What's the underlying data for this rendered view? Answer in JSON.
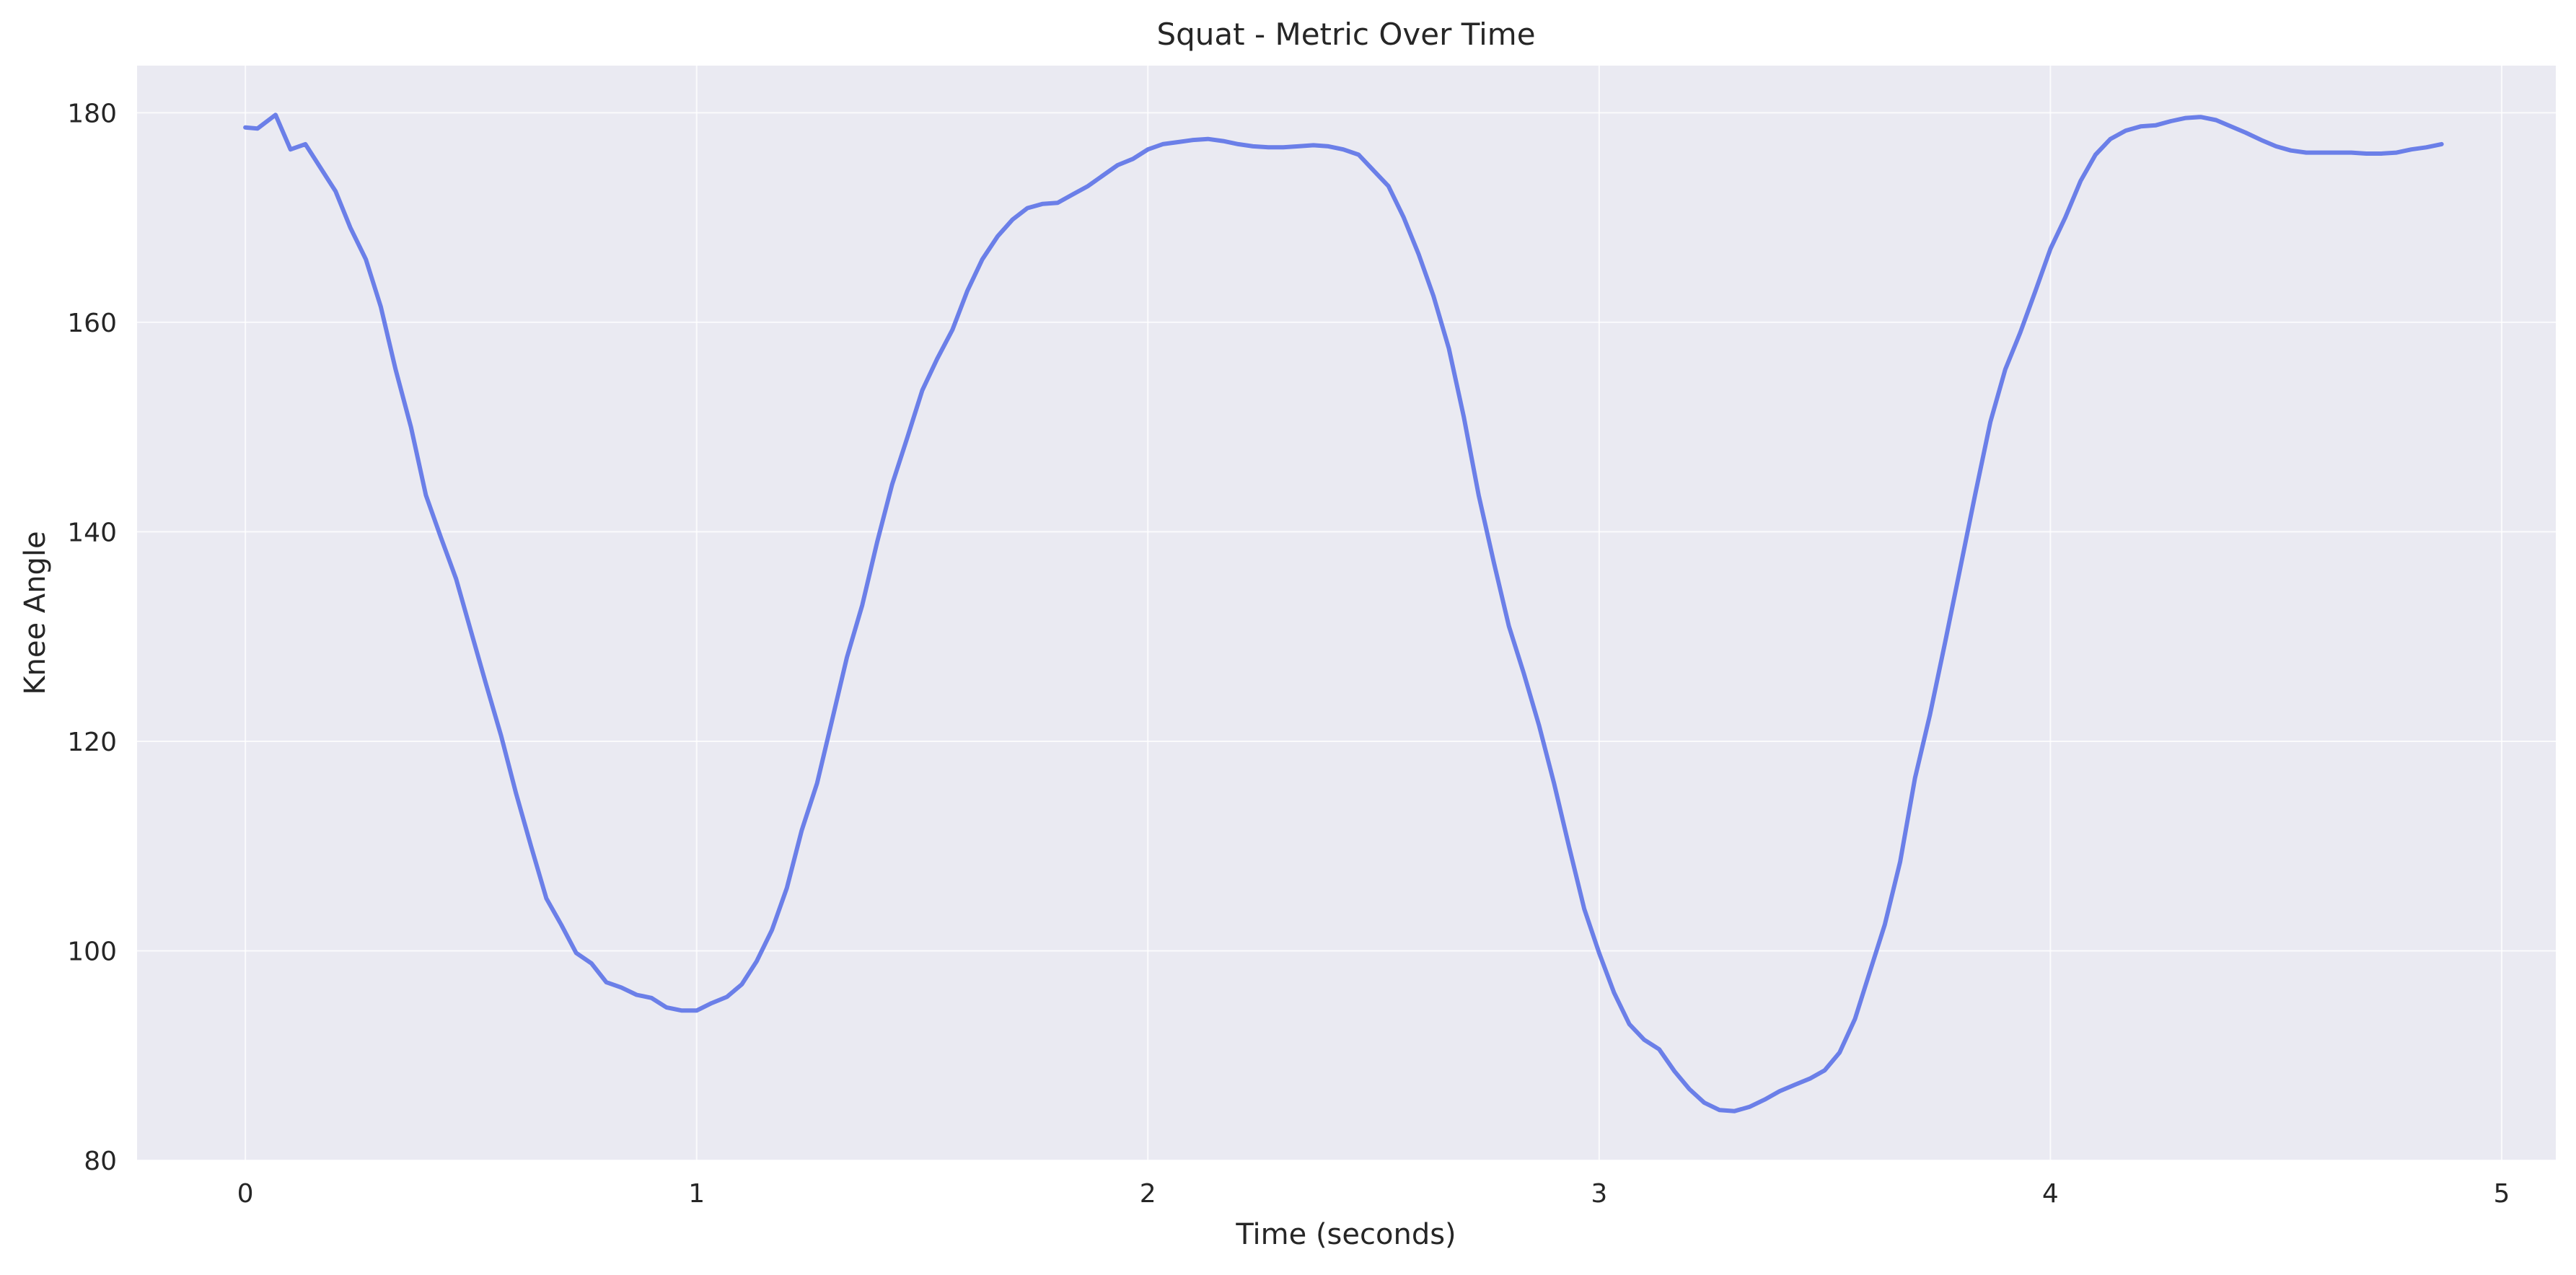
{
  "chart_data": {
    "type": "line",
    "title": "Squat - Metric Over Time",
    "xlabel": "Time (seconds)",
    "ylabel": "Knee Angle",
    "xlim": [
      -0.24,
      5.12
    ],
    "ylim": [
      80,
      184.5
    ],
    "x_ticks": [
      0,
      1,
      2,
      3,
      4,
      5
    ],
    "y_ticks": [
      80,
      100,
      120,
      140,
      160,
      180
    ],
    "grid": true,
    "background": "#eaeaf2",
    "line_color": "#6b7fe8",
    "series": [
      {
        "x": [
          0.0,
          0.027,
          0.067,
          0.1,
          0.133,
          0.2,
          0.233,
          0.267,
          0.3,
          0.333,
          0.367,
          0.4,
          0.433,
          0.467,
          0.5,
          0.533,
          0.567,
          0.6,
          0.633,
          0.667,
          0.7,
          0.733,
          0.767,
          0.8,
          0.833,
          0.867,
          0.9,
          0.933,
          0.967,
          1.0,
          1.033,
          1.067,
          1.1,
          1.133,
          1.167,
          1.2,
          1.233,
          1.267,
          1.3,
          1.333,
          1.367,
          1.4,
          1.433,
          1.467,
          1.5,
          1.533,
          1.567,
          1.6,
          1.633,
          1.667,
          1.7,
          1.733,
          1.767,
          1.8,
          1.833,
          1.867,
          1.9,
          1.933,
          1.967,
          2.0,
          2.033,
          2.067,
          2.1,
          2.133,
          2.167,
          2.2,
          2.233,
          2.267,
          2.3,
          2.333,
          2.367,
          2.4,
          2.433,
          2.467,
          2.5,
          2.533,
          2.567,
          2.6,
          2.633,
          2.667,
          2.7,
          2.733,
          2.767,
          2.8,
          2.833,
          2.867,
          2.9,
          2.933,
          2.967,
          3.0,
          3.033,
          3.067,
          3.1,
          3.133,
          3.167,
          3.2,
          3.233,
          3.267,
          3.3,
          3.333,
          3.367,
          3.4,
          3.433,
          3.467,
          3.5,
          3.533,
          3.567,
          3.6,
          3.633,
          3.667,
          3.7,
          3.733,
          3.767,
          3.8,
          3.833,
          3.867,
          3.9,
          3.933,
          3.967,
          4.0,
          4.033,
          4.067,
          4.1,
          4.133,
          4.167,
          4.2,
          4.233,
          4.267,
          4.3,
          4.333,
          4.367,
          4.4,
          4.433,
          4.467,
          4.5,
          4.533,
          4.567,
          4.6,
          4.633,
          4.667,
          4.7,
          4.733,
          4.767,
          4.8,
          4.833,
          4.867
        ],
        "values": [
          178.6,
          178.5,
          179.8,
          176.5,
          177.0,
          172.5,
          169.0,
          166.0,
          161.5,
          155.5,
          150.0,
          143.5,
          139.5,
          135.5,
          130.5,
          125.5,
          120.5,
          115.0,
          110.0,
          105.0,
          102.5,
          99.8,
          98.8,
          97.0,
          96.5,
          95.8,
          95.5,
          94.6,
          94.3,
          94.3,
          95.0,
          95.6,
          96.8,
          99.0,
          102.0,
          106.0,
          111.5,
          116.0,
          122.0,
          128.0,
          133.0,
          139.0,
          144.5,
          149.0,
          153.5,
          156.5,
          159.3,
          163.0,
          166.0,
          168.2,
          169.8,
          170.9,
          171.3,
          171.4,
          172.2,
          173.0,
          174.0,
          175.0,
          175.6,
          176.5,
          177.0,
          177.2,
          177.4,
          177.5,
          177.3,
          177.0,
          176.8,
          176.7,
          176.7,
          176.8,
          176.9,
          176.8,
          176.5,
          176.0,
          174.5,
          173.0,
          170.0,
          166.5,
          162.5,
          157.5,
          151.0,
          143.5,
          137.0,
          131.0,
          126.5,
          121.5,
          116.0,
          110.0,
          104.0,
          99.8,
          96.0,
          93.0,
          91.5,
          90.6,
          88.5,
          86.8,
          85.5,
          84.8,
          84.7,
          85.1,
          85.8,
          86.6,
          87.2,
          87.8,
          88.6,
          90.3,
          93.5,
          98.0,
          102.5,
          108.5,
          116.5,
          122.5,
          129.5,
          136.5,
          143.5,
          150.5,
          155.5,
          159.0,
          163.0,
          167.0,
          170.0,
          173.5,
          176.0,
          177.5,
          178.3,
          178.7,
          178.8,
          179.2,
          179.5,
          179.6,
          179.3,
          178.7,
          178.1,
          177.4,
          176.8,
          176.4,
          176.2,
          176.2,
          176.2,
          176.2,
          176.1,
          176.1,
          176.2,
          176.5,
          176.7,
          177.0
        ]
      }
    ]
  }
}
